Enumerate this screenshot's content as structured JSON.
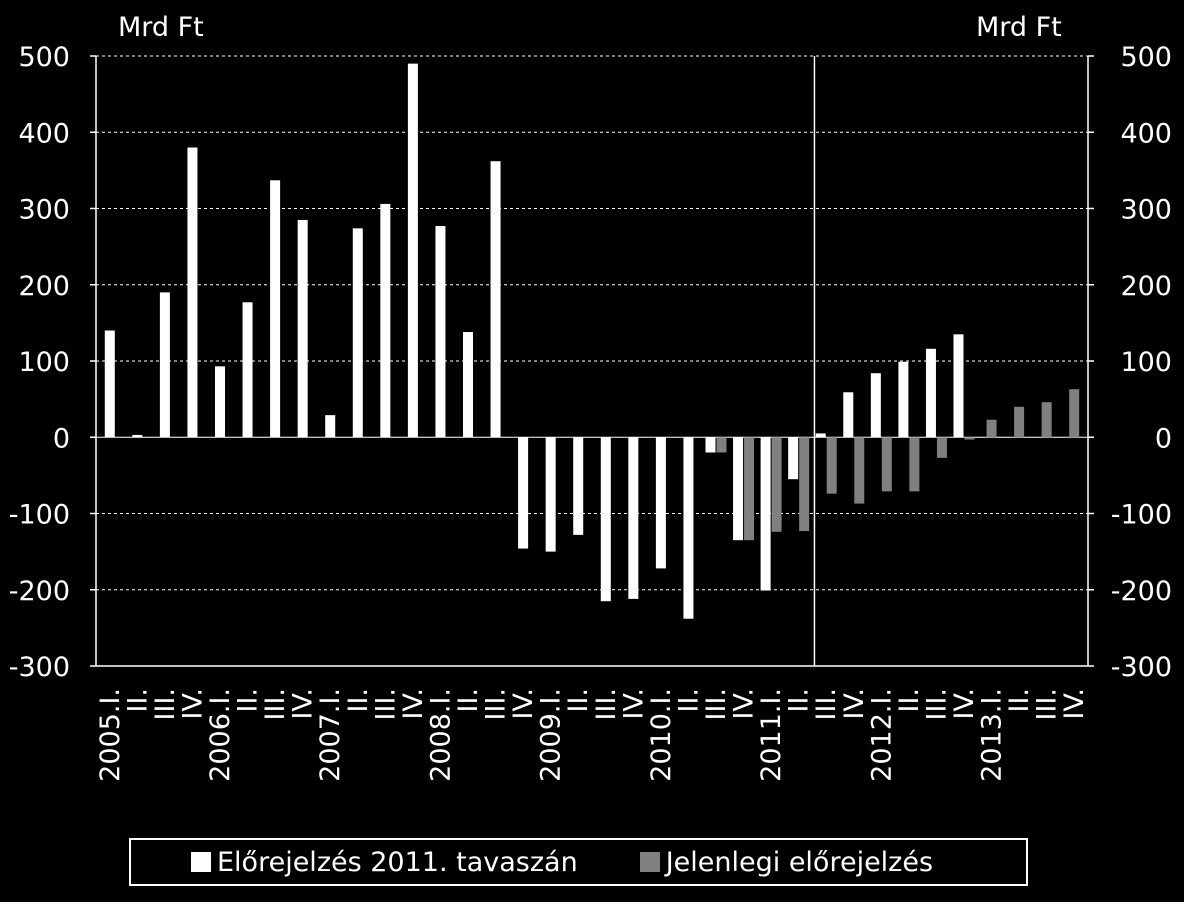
{
  "chart_data": {
    "type": "bar",
    "title": "",
    "left_unit": "Mrd Ft",
    "right_unit": "Mrd Ft",
    "ylim": [
      -300,
      500
    ],
    "yticks": [
      500,
      400,
      300,
      200,
      100,
      0,
      -100,
      -200,
      -300
    ],
    "ytick_labels": [
      "500",
      "400",
      "300",
      "200",
      "100",
      "0",
      "-100",
      "-200",
      "-300"
    ],
    "grid": true,
    "legend_position": "bottom",
    "categories": [
      "2005.I.",
      "II.",
      "III.",
      "IV.",
      "2006.I.",
      "II.",
      "III.",
      "IV.",
      "2007.I.",
      "II.",
      "III.",
      "IV.",
      "2008.I.",
      "II.",
      "III.",
      "IV.",
      "2009.I.",
      "II.",
      "III.",
      "IV.",
      "2010.I.",
      "II.",
      "III.",
      "IV.",
      "2011.I.",
      "II.",
      "III.",
      "IV.",
      "2012.I.",
      "II.",
      "III.",
      "IV.",
      "2013.I.",
      "II.",
      "III.",
      "IV."
    ],
    "forecast_divider_after_category": "2011.II.",
    "series": [
      {
        "name": "Előrejelzés 2011. tavaszán",
        "color": "#ffffff",
        "values": [
          140,
          3,
          190,
          380,
          93,
          177,
          337,
          285,
          29,
          274,
          306,
          490,
          277,
          138,
          362,
          -146,
          -150,
          -128,
          -215,
          -212,
          -172,
          -238,
          -20,
          -135,
          -201,
          -55,
          5,
          59,
          84,
          99,
          116,
          135,
          null,
          null,
          null,
          null
        ]
      },
      {
        "name": "Jelenlegi előrejelzés",
        "color": "#808080",
        "values": [
          null,
          null,
          null,
          null,
          null,
          null,
          null,
          null,
          null,
          null,
          null,
          null,
          null,
          null,
          null,
          null,
          null,
          null,
          null,
          null,
          null,
          null,
          -20,
          -135,
          -124,
          -123,
          -74,
          -87,
          -71,
          -71,
          -27,
          -3,
          23,
          40,
          46,
          63
        ]
      }
    ]
  }
}
